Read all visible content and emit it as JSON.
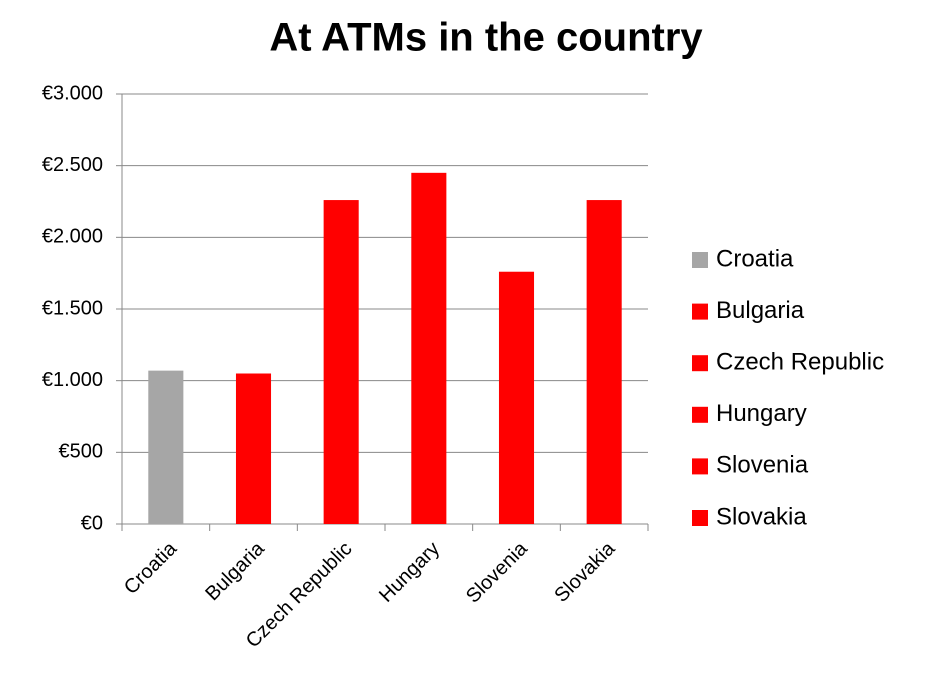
{
  "chart_data": {
    "type": "bar",
    "title": "At ATMs in the country",
    "categories": [
      "Croatia",
      "Bulgaria",
      "Czech Republic",
      "Hungary",
      "Slovenia",
      "Slovakia"
    ],
    "values": [
      1070,
      1050,
      2260,
      2450,
      1760,
      2260
    ],
    "colors": [
      "#a6a6a6",
      "#ff0000",
      "#ff0000",
      "#ff0000",
      "#ff0000",
      "#ff0000"
    ],
    "ylim": [
      0,
      3000
    ],
    "yticks": [
      {
        "value": 0,
        "label": "€0"
      },
      {
        "value": 500,
        "label": "€500"
      },
      {
        "value": 1000,
        "label": "€1.000"
      },
      {
        "value": 1500,
        "label": "€1.500"
      },
      {
        "value": 2000,
        "label": "€2.000"
      },
      {
        "value": 2500,
        "label": "€2.500"
      },
      {
        "value": 3000,
        "label": "€3.000"
      }
    ],
    "grid": true,
    "legend": "right"
  }
}
